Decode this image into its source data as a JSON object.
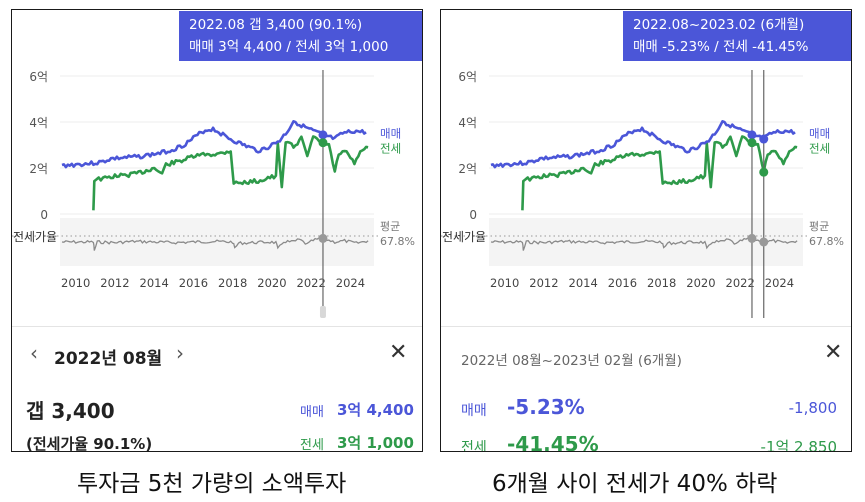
{
  "colors": {
    "sale": "#4b56d8",
    "jeonse": "#2e9a4a",
    "ratio": "#8a8a8a",
    "tooltip_bg": "#4b56d8"
  },
  "left_panel": {
    "tooltip": {
      "line1": "2022.08  갭 3,400 (90.1%)",
      "line2": "매매 3억 4,400 / 전세 3억 1,000"
    },
    "info": {
      "prev_icon": "‹",
      "period": "2022년 08월",
      "next_icon": "›",
      "close_icon": "✕",
      "gap": "갭 3,400",
      "ratio": "(전세가율 90.1%)",
      "sale_label": "매매",
      "sale_value": "3억 4,400",
      "jeonse_label": "전세",
      "jeonse_value": "3억 1,000"
    },
    "caption": "투자금 5천 가량의 소액투자"
  },
  "right_panel": {
    "tooltip": {
      "line1": "2022.08~2023.02 (6개월)",
      "line2": "매매 -5.23%  /  전세 -41.45%"
    },
    "info": {
      "period": "2022년 08월~2023년 02월 (6개월)",
      "close_icon": "✕",
      "sale_label": "매매",
      "sale_pct": "-5.23%",
      "sale_diff": "-1,800",
      "jeonse_label": "전세",
      "jeonse_pct": "-41.45%",
      "jeonse_diff": "-1억 2,850"
    },
    "caption": "6개월 사이 전세가 40% 하락"
  },
  "chart_data": {
    "type": "line",
    "title": "",
    "xlabel": "",
    "ylabel": "",
    "x_ticks": [
      "2010",
      "2012",
      "2014",
      "2016",
      "2018",
      "2020",
      "2022",
      "2024"
    ],
    "y_ticks": [
      "6억",
      "4억",
      "2억",
      "0"
    ],
    "ylim": [
      0,
      6
    ],
    "xlim": [
      2009.2,
      2025.2
    ],
    "ratio_label": "전세가율",
    "avg_label": "평균",
    "avg_value": "67.8%",
    "series": [
      {
        "name": "매매",
        "unit": "억",
        "points": [
          [
            2009.3,
            2.1
          ],
          [
            2010,
            2.15
          ],
          [
            2010.8,
            2.2
          ],
          [
            2011.3,
            2.25
          ],
          [
            2011.8,
            2.4
          ],
          [
            2012.5,
            2.45
          ],
          [
            2013.3,
            2.5
          ],
          [
            2014,
            2.6
          ],
          [
            2014.8,
            2.75
          ],
          [
            2015.5,
            3.0
          ],
          [
            2016,
            3.3
          ],
          [
            2016.5,
            3.6
          ],
          [
            2017,
            3.7
          ],
          [
            2017.5,
            3.45
          ],
          [
            2018,
            3.2
          ],
          [
            2018.7,
            2.95
          ],
          [
            2019.3,
            2.75
          ],
          [
            2019.8,
            2.9
          ],
          [
            2020.4,
            3.2
          ],
          [
            2020.8,
            3.6
          ],
          [
            2021.1,
            4.05
          ],
          [
            2021.5,
            3.85
          ],
          [
            2022,
            3.65
          ],
          [
            2022.6,
            3.44
          ],
          [
            2023.2,
            3.26
          ],
          [
            2023.6,
            3.5
          ],
          [
            2024.2,
            3.6
          ],
          [
            2024.8,
            3.55
          ]
        ]
      },
      {
        "name": "전세",
        "unit": "억",
        "points": [
          [
            2010.9,
            0.2
          ],
          [
            2010.95,
            1.5
          ],
          [
            2011.5,
            1.55
          ],
          [
            2012,
            1.65
          ],
          [
            2012.7,
            1.7
          ],
          [
            2013.3,
            1.8
          ],
          [
            2014,
            2.0
          ],
          [
            2014.4,
            1.75
          ],
          [
            2014.6,
            2.15
          ],
          [
            2015.3,
            2.3
          ],
          [
            2016,
            2.5
          ],
          [
            2016.6,
            2.6
          ],
          [
            2017.2,
            2.6
          ],
          [
            2017.9,
            2.75
          ],
          [
            2018.05,
            1.35
          ],
          [
            2018.4,
            1.35
          ],
          [
            2019.4,
            1.45
          ],
          [
            2019.9,
            1.6
          ],
          [
            2020.2,
            1.6
          ],
          [
            2020.3,
            3.1
          ],
          [
            2020.5,
            1.1
          ],
          [
            2020.7,
            3.2
          ],
          [
            2021.2,
            2.9
          ],
          [
            2021.5,
            3.4
          ],
          [
            2021.8,
            2.6
          ],
          [
            2022.1,
            3.3
          ],
          [
            2022.6,
            3.1
          ],
          [
            2022.9,
            3.0
          ],
          [
            2023.2,
            1.82
          ],
          [
            2023.4,
            2.6
          ],
          [
            2023.8,
            2.7
          ],
          [
            2024.2,
            2.2
          ],
          [
            2024.6,
            2.8
          ],
          [
            2024.9,
            2.9
          ]
        ]
      }
    ],
    "ratio_points": [
      [
        2009.3,
        -0.5
      ],
      [
        2010,
        -0.5
      ],
      [
        2010.9,
        -0.5
      ],
      [
        2010.95,
        -1.2
      ],
      [
        2011.1,
        -0.5
      ],
      [
        2012,
        -0.55
      ],
      [
        2013,
        -0.45
      ],
      [
        2014,
        -0.5
      ],
      [
        2015,
        -0.55
      ],
      [
        2016,
        -0.5
      ],
      [
        2017,
        -0.45
      ],
      [
        2018,
        -0.5
      ],
      [
        2018.1,
        -1.0
      ],
      [
        2018.3,
        -0.6
      ],
      [
        2019,
        -0.55
      ],
      [
        2019.9,
        -0.5
      ],
      [
        2020.2,
        -0.55
      ],
      [
        2020.3,
        -1.1
      ],
      [
        2020.6,
        -0.45
      ],
      [
        2021,
        -0.5
      ],
      [
        2021.4,
        -0.3
      ],
      [
        2021.8,
        -0.7
      ],
      [
        2022.1,
        -0.35
      ],
      [
        2022.6,
        -0.2
      ],
      [
        2023.2,
        -0.5
      ],
      [
        2023.7,
        -0.4
      ],
      [
        2024.3,
        -0.6
      ],
      [
        2024.9,
        -0.4
      ]
    ],
    "left_marker_x": 2022.6,
    "right_range": [
      2022.6,
      2023.2
    ]
  }
}
